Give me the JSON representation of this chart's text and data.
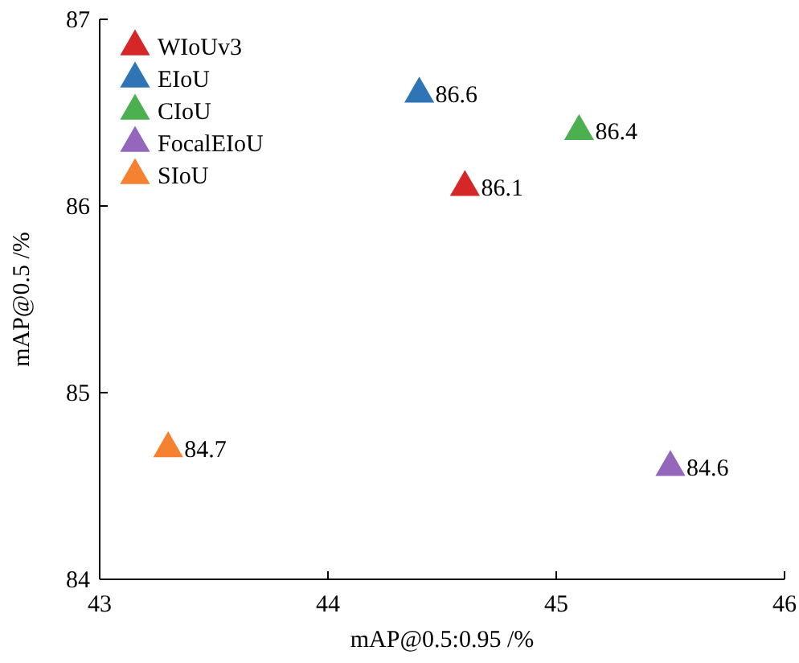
{
  "chart_data": {
    "type": "scatter",
    "xlabel": "mAP@0.5:0.95 /%",
    "ylabel": "mAP@0.5 /%",
    "series": [
      {
        "name": "WIoUv3",
        "color": "#d62728",
        "x": [
          44.6
        ],
        "values": [
          86.1
        ]
      },
      {
        "name": "EIoU",
        "color": "#2f74b5",
        "x": [
          44.4
        ],
        "values": [
          86.6
        ]
      },
      {
        "name": "CIoU",
        "color": "#4caf50",
        "x": [
          45.1
        ],
        "values": [
          86.4
        ]
      },
      {
        "name": "FocalEIoU",
        "color": "#9467bd",
        "x": [
          45.5
        ],
        "values": [
          84.6
        ]
      },
      {
        "name": "SIoU",
        "color": "#f58231",
        "x": [
          43.3
        ],
        "values": [
          84.7
        ]
      }
    ],
    "xlim": [
      43,
      46
    ],
    "xticks": [
      43,
      44,
      45,
      46
    ],
    "ylim": [
      84,
      87
    ],
    "yticks": [
      84,
      85,
      86,
      87
    ],
    "data_labels": true,
    "legend": "top left",
    "marker": "triangle",
    "grid": false
  }
}
